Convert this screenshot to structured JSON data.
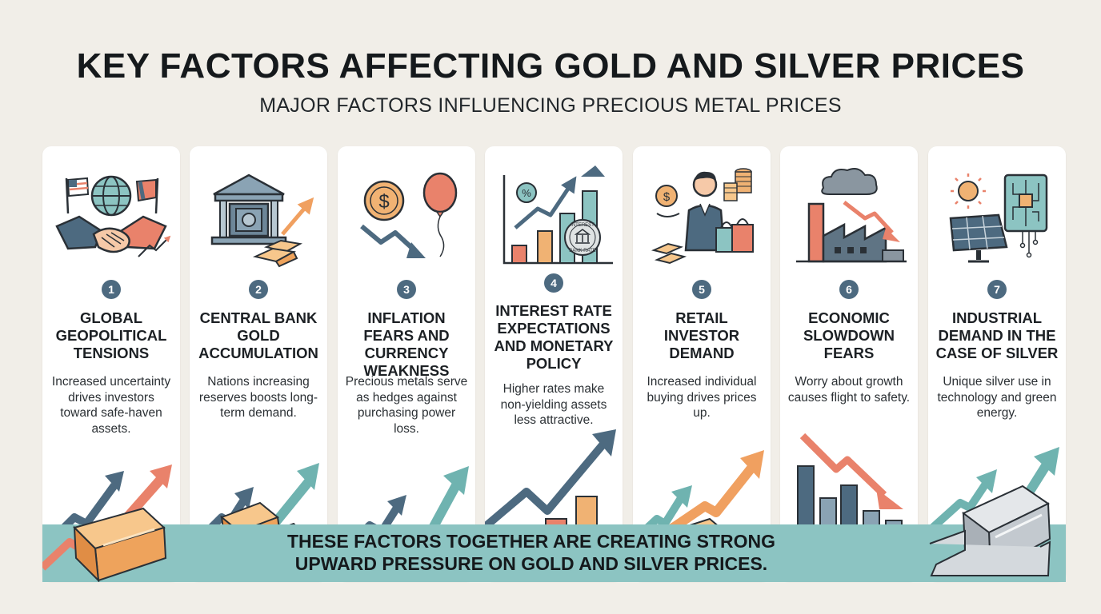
{
  "header": {
    "title": "KEY FACTORS AFFECTING GOLD AND SILVER PRICES",
    "subtitle": "MAJOR FACTORS INFLUENCING PRECIOUS METAL PRICES"
  },
  "factors": [
    {
      "number": "1",
      "title": "GLOBAL GEOPOLITICAL TENSIONS",
      "description": "Increased uncertainty drives investors toward safe-haven assets.",
      "icon": "handshake-globe-flags-icon"
    },
    {
      "number": "2",
      "title": "CENTRAL BANK GOLD ACCUMULATION",
      "description": "Nations increasing reserves boosts long-term demand.",
      "icon": "bank-vault-gold-icon"
    },
    {
      "number": "3",
      "title": "INFLATION FEARS AND CURRENCY WEAKNESS",
      "description": "Precious metals serve as hedges against purchasing power loss.",
      "icon": "dollar-balloon-decline-icon"
    },
    {
      "number": "4",
      "title": "INTEREST RATE EXPECTATIONS AND MONETARY POLICY",
      "description": "Higher rates make non-yielding assets less attractive.",
      "icon": "interest-rate-chart-icon",
      "stamp_text": "INTEREST",
      "stamp_text_2": "BANK RATE"
    },
    {
      "number": "5",
      "title": "RETAIL INVESTOR DEMAND",
      "description": "Increased individual buying drives prices up.",
      "icon": "investor-coins-shopping-icon"
    },
    {
      "number": "6",
      "title": "ECONOMIC SLOWDOWN FEARS",
      "description": "Worry about growth causes flight to safety.",
      "icon": "factory-decline-icon"
    },
    {
      "number": "7",
      "title": "INDUSTRIAL DEMAND IN THE CASE OF SILVER",
      "description": "Unique silver use in technology and green energy.",
      "icon": "solar-panel-circuit-icon"
    }
  ],
  "banner": {
    "line1": "THESE FACTORS TOGETHER ARE CREATING STRONG",
    "line2": "UPWARD PRESSURE ON GOLD AND SILVER PRICES."
  },
  "colors": {
    "navy": "#4d6a80",
    "teal": "#6fb3b0",
    "coral": "#e9826b",
    "gold": "#f0b273",
    "banner": "#8cc4c2",
    "background": "#f1eee8"
  }
}
